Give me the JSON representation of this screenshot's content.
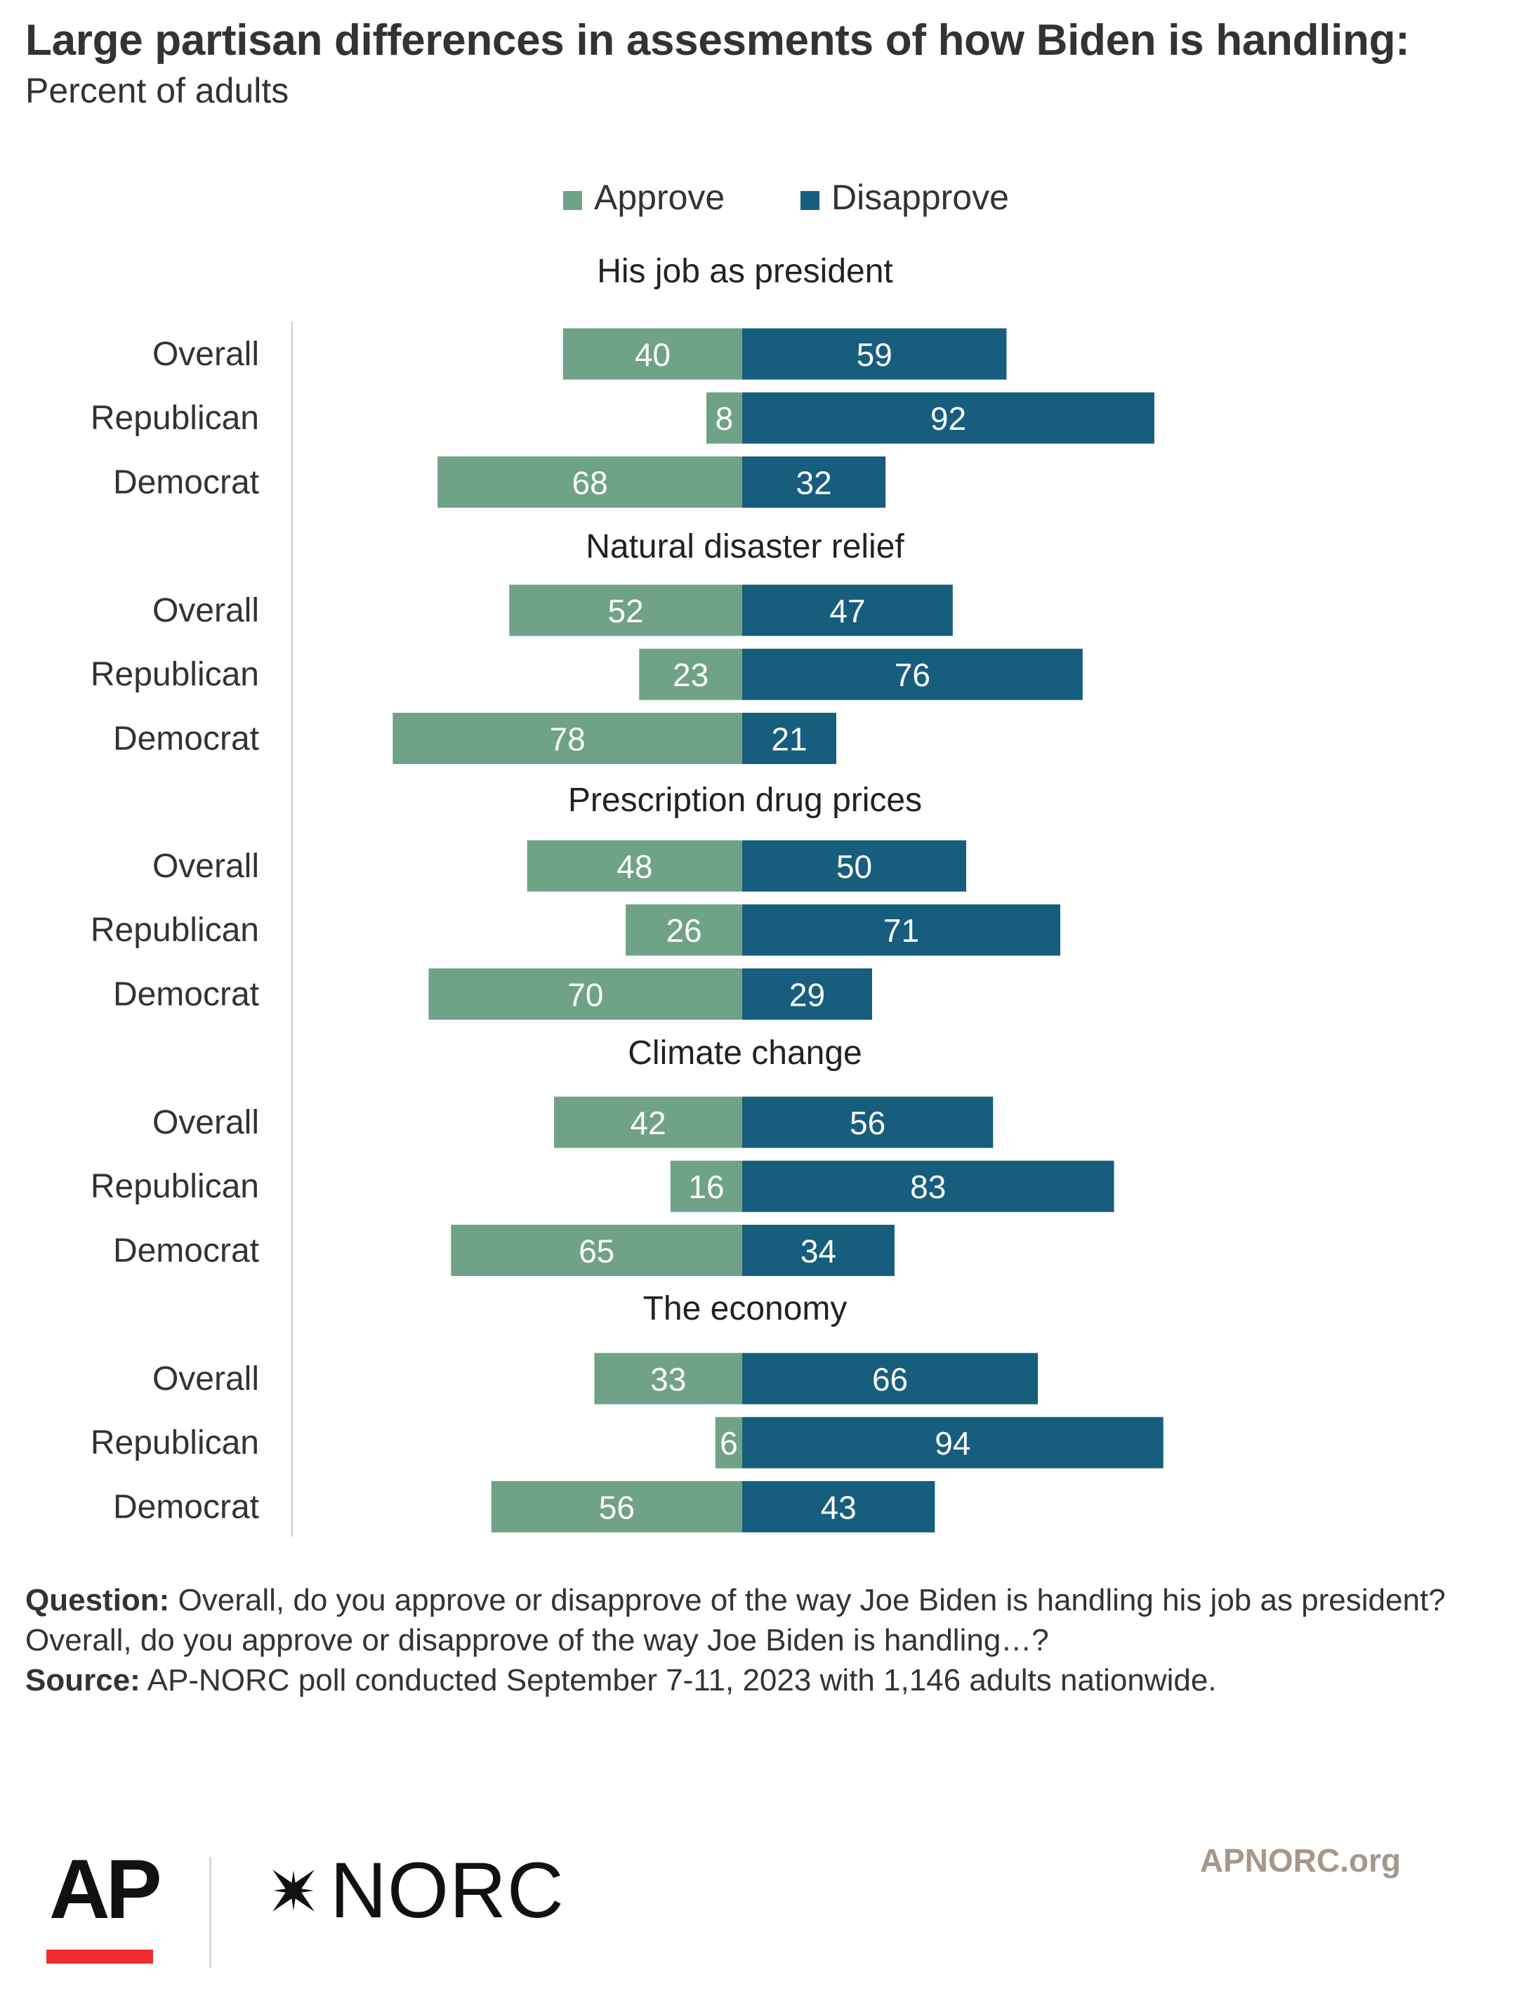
{
  "title": "Large partisan differences in assesments of how Biden is handling:",
  "subtitle": "Percent of adults",
  "legend": [
    {
      "label": "Approve",
      "color": "#6fa286"
    },
    {
      "label": "Disapprove",
      "color": "#175d7d"
    }
  ],
  "chart_data": {
    "type": "bar",
    "orientation": "horizontal-diverging",
    "legend_position": "top-center",
    "grid": false,
    "series": [
      {
        "name": "Approve",
        "color": "#6fa286"
      },
      {
        "name": "Disapprove",
        "color": "#175d7d"
      }
    ],
    "groups": [
      {
        "title": "His job as president",
        "rows": [
          {
            "label": "Overall",
            "approve": 40,
            "disapprove": 59
          },
          {
            "label": "Republican",
            "approve": 8,
            "disapprove": 92
          },
          {
            "label": "Democrat",
            "approve": 68,
            "disapprove": 32
          }
        ]
      },
      {
        "title": "Natural disaster relief",
        "rows": [
          {
            "label": "Overall",
            "approve": 52,
            "disapprove": 47
          },
          {
            "label": "Republican",
            "approve": 23,
            "disapprove": 76
          },
          {
            "label": "Democrat",
            "approve": 78,
            "disapprove": 21
          }
        ]
      },
      {
        "title": "Prescription drug prices",
        "rows": [
          {
            "label": "Overall",
            "approve": 48,
            "disapprove": 50
          },
          {
            "label": "Republican",
            "approve": 26,
            "disapprove": 71
          },
          {
            "label": "Democrat",
            "approve": 70,
            "disapprove": 29
          }
        ]
      },
      {
        "title": "Climate change",
        "rows": [
          {
            "label": "Overall",
            "approve": 42,
            "disapprove": 56
          },
          {
            "label": "Republican",
            "approve": 16,
            "disapprove": 83
          },
          {
            "label": "Democrat",
            "approve": 65,
            "disapprove": 34
          }
        ]
      },
      {
        "title": "The economy",
        "rows": [
          {
            "label": "Overall",
            "approve": 33,
            "disapprove": 66
          },
          {
            "label": "Republican",
            "approve": 6,
            "disapprove": 94
          },
          {
            "label": "Democrat",
            "approve": 56,
            "disapprove": 43
          }
        ]
      }
    ]
  },
  "notes": {
    "question_label": "Question:",
    "question_text": "Overall, do you approve or disapprove of the way Joe Biden is handling his job as president?",
    "question_text_2": "Overall, do you approve or disapprove of the way Joe Biden is handling…?",
    "source_label": "Source:",
    "source_text": "AP-NORC poll conducted September 7-11, 2023 with 1,146 adults nationwide."
  },
  "footer": {
    "ap_logo": "AP",
    "norc_logo": "NORC",
    "site": "APNORC.org"
  }
}
